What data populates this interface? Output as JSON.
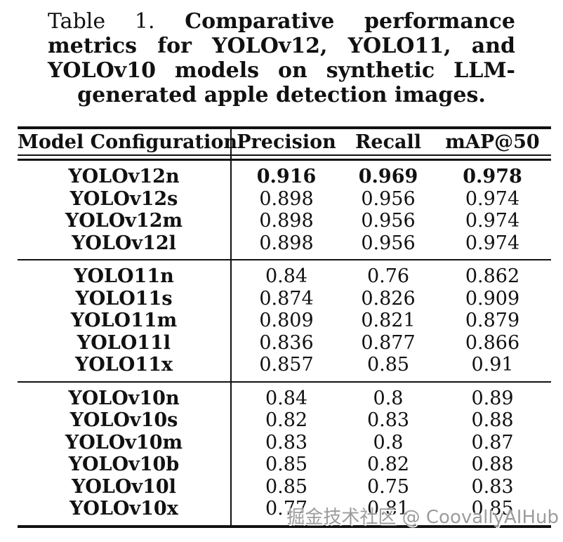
{
  "title": {
    "label": "Table 1.",
    "line1": "Comparative performance",
    "line2": "metrics for YOLOv12, YOLO11, and",
    "line3": "YOLOv10 models on synthetic LLM-",
    "line4": "generated apple detection images."
  },
  "table": {
    "columns": [
      "Model Configuration",
      "Precision",
      "Recall",
      "mAP@50"
    ],
    "sections": [
      {
        "name": "YOLOv12",
        "rows": [
          {
            "model": "YOLOv12n",
            "precision": "0.916",
            "recall": "0.969",
            "map50": "0.978",
            "bold": true
          },
          {
            "model": "YOLOv12s",
            "precision": "0.898",
            "recall": "0.956",
            "map50": "0.974"
          },
          {
            "model": "YOLOv12m",
            "precision": "0.898",
            "recall": "0.956",
            "map50": "0.974"
          },
          {
            "model": "YOLOv12l",
            "precision": "0.898",
            "recall": "0.956",
            "map50": "0.974"
          }
        ]
      },
      {
        "name": "YOLO11",
        "rows": [
          {
            "model": "YOLO11n",
            "precision": "0.84",
            "recall": "0.76",
            "map50": "0.862"
          },
          {
            "model": "YOLO11s",
            "precision": "0.874",
            "recall": "0.826",
            "map50": "0.909"
          },
          {
            "model": "YOLO11m",
            "precision": "0.809",
            "recall": "0.821",
            "map50": "0.879"
          },
          {
            "model": "YOLO11l",
            "precision": "0.836",
            "recall": "0.877",
            "map50": "0.866"
          },
          {
            "model": "YOLO11x",
            "precision": "0.857",
            "recall": "0.85",
            "map50": "0.91"
          }
        ]
      },
      {
        "name": "YOLOv10",
        "rows": [
          {
            "model": "YOLOv10n",
            "precision": "0.84",
            "recall": "0.8",
            "map50": "0.89"
          },
          {
            "model": "YOLOv10s",
            "precision": "0.82",
            "recall": "0.83",
            "map50": "0.88"
          },
          {
            "model": "YOLOv10m",
            "precision": "0.83",
            "recall": "0.8",
            "map50": "0.87"
          },
          {
            "model": "YOLOv10b",
            "precision": "0.85",
            "recall": "0.82",
            "map50": "0.88"
          },
          {
            "model": "YOLOv10l",
            "precision": "0.85",
            "recall": "0.75",
            "map50": "0.83"
          },
          {
            "model": "YOLOv10x",
            "precision": "0.77",
            "recall": "0.81",
            "map50": "0.85"
          }
        ]
      }
    ]
  },
  "watermark": {
    "text": "掘金技术社区 @ CoovallyAIHub"
  },
  "colors": {
    "text": "#111111",
    "rule": "#111111",
    "background": "#ffffff",
    "watermark": "#9c9c9c"
  }
}
